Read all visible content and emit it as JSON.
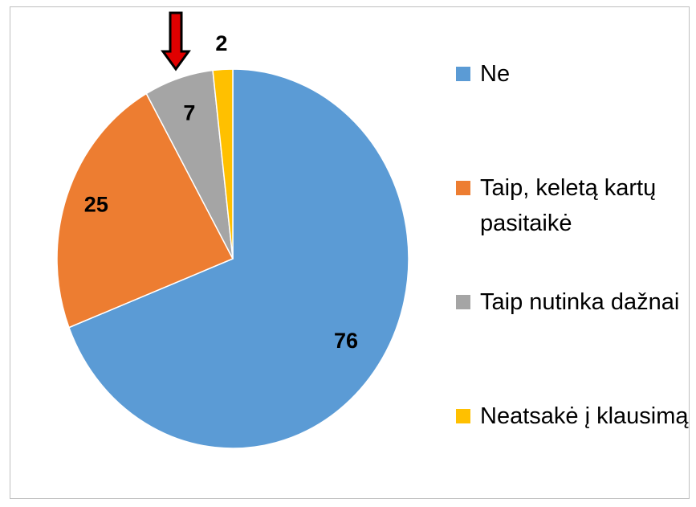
{
  "chart_data": {
    "type": "pie",
    "categories": [
      "Ne",
      "Taip, keletą kartų pasitaikė",
      "Taip nutinka dažnai",
      "Neatsakė į klausimą"
    ],
    "values": [
      76,
      25,
      7,
      2
    ],
    "colors": [
      "#5b9bd5",
      "#ed7d31",
      "#a5a5a5",
      "#ffc000"
    ],
    "legend": "right"
  }
}
